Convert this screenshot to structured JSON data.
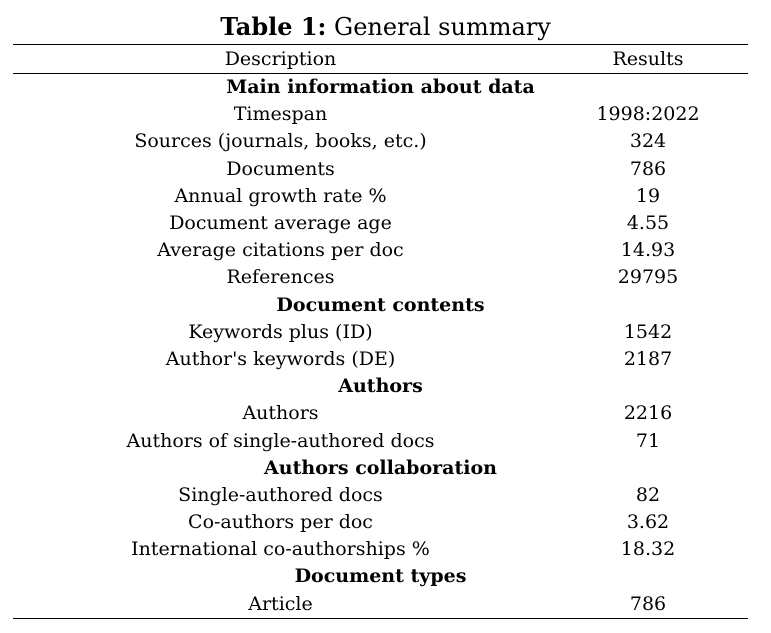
{
  "caption": {
    "label": "Table 1:",
    "title": "General summary"
  },
  "header": {
    "description": "Description",
    "results": "Results"
  },
  "rows": [
    {
      "type": "section",
      "text": "Main information about data"
    },
    {
      "type": "data",
      "description": "Timespan",
      "result": "1998:2022"
    },
    {
      "type": "data",
      "description": "Sources (journals, books, etc.)",
      "result": "324"
    },
    {
      "type": "data",
      "description": "Documents",
      "result": "786"
    },
    {
      "type": "data",
      "description": "Annual growth rate %",
      "result": "19"
    },
    {
      "type": "data",
      "description": "Document average age",
      "result": "4.55"
    },
    {
      "type": "data",
      "description": "Average citations per doc",
      "result": "14.93"
    },
    {
      "type": "data",
      "description": "References",
      "result": "29795"
    },
    {
      "type": "section",
      "text": "Document contents"
    },
    {
      "type": "data",
      "description": "Keywords plus (ID)",
      "result": "1542"
    },
    {
      "type": "data",
      "description": "Author's keywords (DE)",
      "result": "2187"
    },
    {
      "type": "section",
      "text": "Authors"
    },
    {
      "type": "data",
      "description": "Authors",
      "result": "2216"
    },
    {
      "type": "data",
      "description": "Authors of single-authored docs",
      "result": "71"
    },
    {
      "type": "section",
      "text": "Authors collaboration"
    },
    {
      "type": "data",
      "description": "Single-authored docs",
      "result": "82"
    },
    {
      "type": "data",
      "description": "Co-authors per doc",
      "result": "3.62"
    },
    {
      "type": "data",
      "description": "International co-authorships %",
      "result": "18.32"
    },
    {
      "type": "section",
      "text": "Document types"
    },
    {
      "type": "data",
      "description": "Article",
      "result": "786"
    }
  ]
}
